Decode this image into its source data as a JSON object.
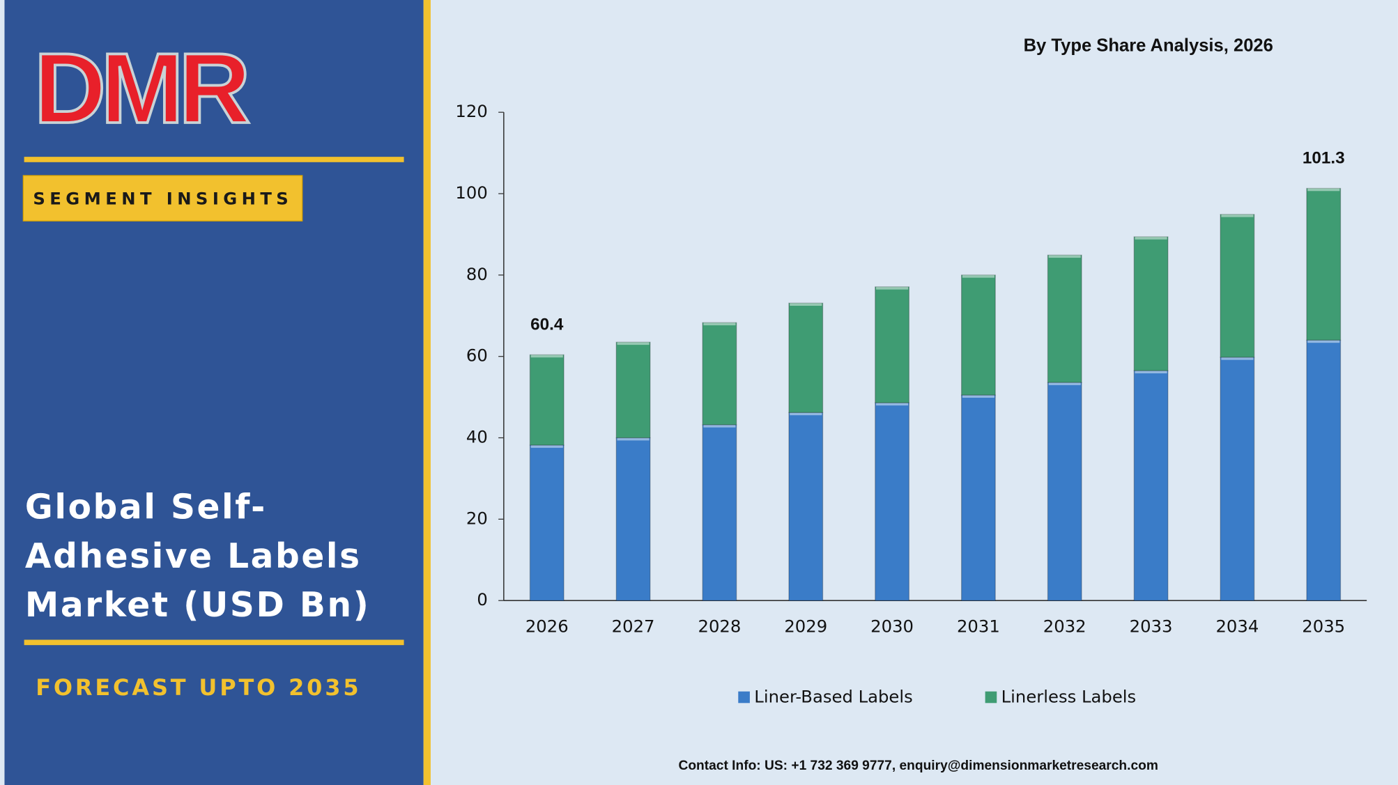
{
  "sidebar": {
    "logo": "DMR",
    "badge": "SEGMENT INSIGHTS",
    "title": "Global Self-Adhesive Labels Market (USD Bn)",
    "footer": "FORECAST UPTO 2035"
  },
  "chart_data": {
    "type": "stacked_bar",
    "title": "By Type Share Analysis, 2026",
    "categories": [
      "2026",
      "2027",
      "2028",
      "2029",
      "2030",
      "2031",
      "2032",
      "2033",
      "2034",
      "2035"
    ],
    "series": [
      {
        "name": "Liner-Based Labels",
        "color": "#3a7cc8",
        "values": [
          38.2,
          40,
          43.2,
          46.2,
          48.6,
          50.5,
          53.6,
          56.5,
          59.8,
          64
        ]
      },
      {
        "name": "Linerless Labels",
        "color": "#3f9c73",
        "values": [
          22.2,
          23.5,
          25.1,
          26.9,
          28.5,
          29.5,
          31.3,
          32.9,
          35.1,
          37.3
        ]
      }
    ],
    "annotations": [
      {
        "category": "2026",
        "value": 60.4
      },
      {
        "category": "2035",
        "value": 101.3
      }
    ],
    "ylim": [
      0,
      120
    ],
    "yticks": [
      0,
      20,
      40,
      60,
      80,
      100,
      120
    ],
    "legend": "bottom"
  },
  "contact": "Contact Info: US: +1 732 369 9777, enquiry@dimensionmarketresearch.com"
}
